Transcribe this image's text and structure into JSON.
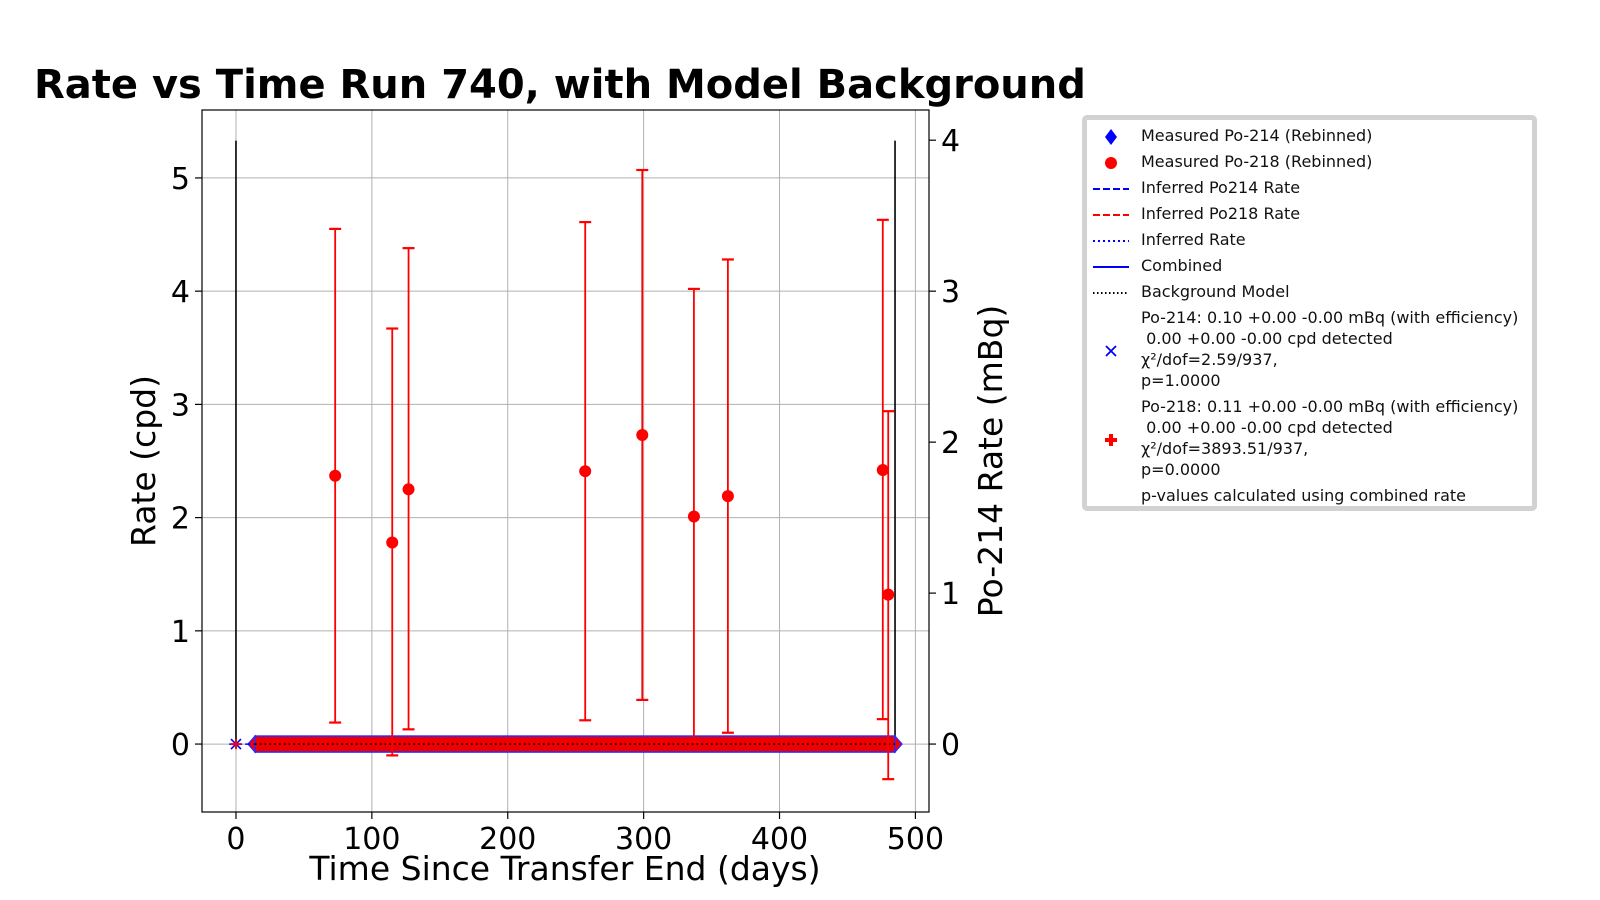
{
  "chart_data": {
    "type": "scatter",
    "title": "Rate vs Time Run 740, with Model Background",
    "xlabel": "Time Since Transfer End (days)",
    "ylabel": "Rate (cpd)",
    "y2label": "Po-214 Rate (mBq)",
    "xlim": [
      -25,
      510
    ],
    "ylim": [
      -0.6,
      5.6
    ],
    "y2lim": [
      -0.45,
      4.2
    ],
    "xticks": [
      "0",
      "100",
      "200",
      "300",
      "400",
      "500"
    ],
    "yticks": [
      "0",
      "1",
      "2",
      "3",
      "4",
      "5"
    ],
    "y2ticks": [
      "0",
      "1",
      "2",
      "3",
      "4"
    ],
    "grid": true,
    "series": [
      {
        "name": "Measured Po-218 (Rebinned)",
        "color": "#ff0000",
        "points": [
          {
            "x": 73,
            "y": 2.37,
            "lo": 0.19,
            "hi": 4.55
          },
          {
            "x": 115,
            "y": 1.78,
            "lo": -0.1,
            "hi": 3.67
          },
          {
            "x": 127,
            "y": 2.25,
            "lo": 0.13,
            "hi": 4.38
          },
          {
            "x": 257,
            "y": 2.41,
            "lo": 0.21,
            "hi": 4.61
          },
          {
            "x": 299,
            "y": 2.73,
            "lo": 0.39,
            "hi": 5.07
          },
          {
            "x": 337,
            "y": 2.01,
            "lo": 0.02,
            "hi": 4.02
          },
          {
            "x": 362,
            "y": 2.19,
            "lo": 0.1,
            "hi": 4.28
          },
          {
            "x": 476,
            "y": 2.42,
            "lo": 0.22,
            "hi": 4.63
          },
          {
            "x": 480,
            "y": 1.32,
            "lo": -0.31,
            "hi": 2.94
          }
        ]
      },
      {
        "name": "Measured Po-214 (Rebinned)",
        "color": "#0000ff",
        "points": [
          {
            "x": 0,
            "y": 0
          },
          {
            "x": 485,
            "y": 0
          }
        ]
      },
      {
        "name": "Inferred Po214 Rate",
        "color": "#0000ff",
        "x": [
          0,
          485
        ],
        "y": [
          0,
          0
        ]
      },
      {
        "name": "Inferred Po218 Rate",
        "color": "#ff0000",
        "x": [
          0,
          485
        ],
        "y": [
          0,
          0
        ]
      },
      {
        "name": "Inferred Rate",
        "color": "#0000ff",
        "x": [
          0,
          485
        ],
        "y": [
          0,
          0
        ]
      },
      {
        "name": "Combined",
        "color": "#0000ff",
        "x": [
          0,
          485
        ],
        "y": [
          0,
          0
        ]
      },
      {
        "name": "Background Model",
        "color": "#000000",
        "x": [
          0,
          485
        ],
        "y": [
          0,
          0
        ]
      }
    ],
    "vlines": [
      0,
      485
    ],
    "legend_position": "outside-right",
    "legend": [
      {
        "marker": "diamond",
        "color": "#0000ff",
        "lines": [
          "Measured Po-214 (Rebinned)"
        ]
      },
      {
        "marker": "circle",
        "color": "#ff0000",
        "lines": [
          "Measured Po-218 (Rebinned)"
        ]
      },
      {
        "marker": "dashed",
        "color": "#0000ff",
        "lines": [
          "Inferred Po214 Rate"
        ]
      },
      {
        "marker": "dashed",
        "color": "#ff0000",
        "lines": [
          "Inferred Po218 Rate"
        ]
      },
      {
        "marker": "dotted",
        "color": "#0000ff",
        "lines": [
          "Inferred Rate"
        ]
      },
      {
        "marker": "solid",
        "color": "#0000ff",
        "lines": [
          "Combined"
        ]
      },
      {
        "marker": "dotted",
        "color": "#000000",
        "lines": [
          "Background Model"
        ]
      },
      {
        "marker": "x",
        "color": "#0000ff",
        "lines": [
          "Po-214: 0.10 +0.00 -0.00 mBq (with efficiency)",
          " 0.00 +0.00 -0.00 cpd detected",
          "χ²/dof=2.59/937,",
          "p=1.0000"
        ]
      },
      {
        "marker": "plus",
        "color": "#ff0000",
        "lines": [
          "Po-218: 0.11 +0.00 -0.00 mBq (with efficiency)",
          " 0.00 +0.00 -0.00 cpd detected",
          "χ²/dof=3893.51/937,",
          "p=0.0000"
        ]
      },
      {
        "marker": "none",
        "color": "#000000",
        "lines": [
          "p-values calculated using combined rate"
        ]
      }
    ]
  }
}
